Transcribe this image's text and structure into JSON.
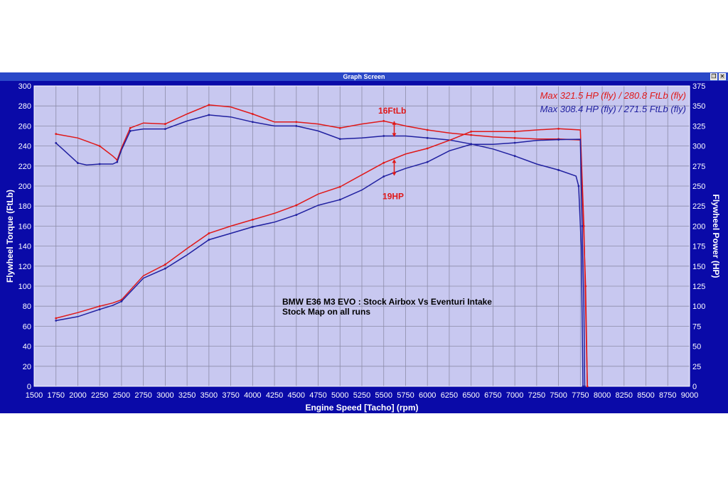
{
  "window": {
    "title": "Graph Screen",
    "restore_glyph": "❐",
    "close_glyph": "✕"
  },
  "chart_data": {
    "type": "line",
    "title": "BMW E36 M3 EVO : Stock Airbox Vs Eventuri Intake",
    "subtitle": "Stock Map on all runs",
    "xlabel": "Engine Speed [Tacho] (rpm)",
    "ylabel_left": "Flywheel Torque (FtLb)",
    "ylabel_right": "Flywheel Power (HP)",
    "xlim": [
      1500,
      9000
    ],
    "ylim_left": [
      0,
      300
    ],
    "ylim_right": [
      0,
      375
    ],
    "x_ticks": [
      1500,
      1750,
      2000,
      2250,
      2500,
      2750,
      3000,
      3250,
      3500,
      3750,
      4000,
      4250,
      4500,
      4750,
      5000,
      5250,
      5500,
      5750,
      6000,
      6250,
      6500,
      6750,
      7000,
      7250,
      7500,
      7750,
      8000,
      8250,
      8500,
      8750,
      9000
    ],
    "left_ticks": [
      0,
      20,
      40,
      60,
      80,
      100,
      120,
      140,
      160,
      180,
      200,
      220,
      240,
      260,
      280,
      300
    ],
    "right_ticks": [
      0,
      25,
      50,
      75,
      100,
      125,
      150,
      175,
      200,
      225,
      250,
      275,
      300,
      325,
      350,
      375
    ],
    "grid": true,
    "legend_placement": "top-right",
    "legend": [
      {
        "text": "Max 321.5 HP (fly) / 280.8 FtLb (fly)",
        "color": "#e01818"
      },
      {
        "text": "Max 308.4 HP (fly) / 271.5 FtLb (fly)",
        "color": "#2020a0"
      }
    ],
    "annotations": [
      {
        "text": "16FtLb",
        "x": 5600,
        "y": 264,
        "axis": "left"
      },
      {
        "text": "19HP",
        "x": 5600,
        "y": 194,
        "axis": "left"
      }
    ],
    "colors": {
      "plot_bg": "#c8c8f0",
      "frame": "#0a0aa8",
      "grid": "#8c8ca8",
      "red": "#e01818",
      "blue": "#2020a0"
    },
    "series": [
      {
        "name": "Max 321.5 HP (fly) / 280.8 FtLb (fly)",
        "quantity": "torque",
        "axis": "left",
        "color": "#e01818",
        "x": [
          1750,
          2000,
          2250,
          2400,
          2450,
          2500,
          2600,
          2750,
          3000,
          3250,
          3500,
          3750,
          4000,
          4250,
          4500,
          4750,
          5000,
          5250,
          5500,
          5750,
          6000,
          6250,
          6500,
          6750,
          7000,
          7250,
          7500,
          7750,
          7770,
          7790,
          7810,
          7830
        ],
        "y": [
          252,
          248,
          240,
          230,
          226,
          238,
          258,
          263,
          262,
          272,
          281,
          279,
          272,
          264,
          264,
          262,
          258,
          262,
          265,
          260,
          256,
          253,
          251,
          249,
          248,
          247,
          247,
          246,
          200,
          150,
          100,
          0
        ]
      },
      {
        "name": "Max 308.4 HP (fly) / 271.5 FtLb (fly)",
        "quantity": "torque",
        "axis": "left",
        "color": "#2020a0",
        "x": [
          1750,
          1850,
          2000,
          2100,
          2250,
          2400,
          2450,
          2500,
          2600,
          2750,
          3000,
          3250,
          3500,
          3750,
          4000,
          4250,
          4500,
          4750,
          5000,
          5250,
          5500,
          5750,
          6000,
          6250,
          6500,
          6750,
          7000,
          7250,
          7500,
          7700,
          7730,
          7760,
          7780
        ],
        "y": [
          243,
          235,
          223,
          221,
          222,
          222,
          224,
          236,
          255,
          257,
          257,
          265,
          271,
          269,
          264,
          260,
          260,
          255,
          247,
          248,
          250,
          250,
          248,
          246,
          242,
          237,
          230,
          222,
          216,
          210,
          200,
          140,
          0
        ]
      },
      {
        "name": "Max 321.5 HP (fly) / 280.8 FtLb (fly)",
        "quantity": "power",
        "axis": "right",
        "color": "#e01818",
        "x": [
          1750,
          2000,
          2250,
          2400,
          2500,
          2750,
          3000,
          3250,
          3500,
          3750,
          4000,
          4250,
          4500,
          4750,
          5000,
          5250,
          5500,
          5750,
          6000,
          6250,
          6500,
          6750,
          7000,
          7250,
          7500,
          7750,
          7790,
          7810,
          7830
        ],
        "y": [
          85,
          92,
          100,
          104,
          108,
          138,
          152,
          172,
          191,
          200,
          208,
          216,
          226,
          240,
          249,
          264,
          279,
          290,
          297,
          307,
          318,
          318,
          318,
          320,
          321.5,
          320,
          200,
          100,
          0
        ]
      },
      {
        "name": "Max 308.4 HP (fly) / 271.5 FtLb (fly)",
        "quantity": "power",
        "axis": "right",
        "color": "#2020a0",
        "x": [
          1750,
          2000,
          2250,
          2400,
          2500,
          2750,
          3000,
          3250,
          3500,
          3750,
          4000,
          4250,
          4500,
          4750,
          5000,
          5250,
          5500,
          5750,
          6000,
          6250,
          6500,
          6750,
          7000,
          7250,
          7500,
          7750,
          7770,
          7790,
          7800
        ],
        "y": [
          82,
          87,
          96,
          101,
          106,
          135,
          147,
          164,
          183,
          191,
          199,
          205,
          214,
          226,
          233,
          245,
          262,
          272,
          280,
          294,
          302,
          302,
          304,
          307,
          308,
          308.4,
          200,
          100,
          0
        ]
      }
    ]
  }
}
